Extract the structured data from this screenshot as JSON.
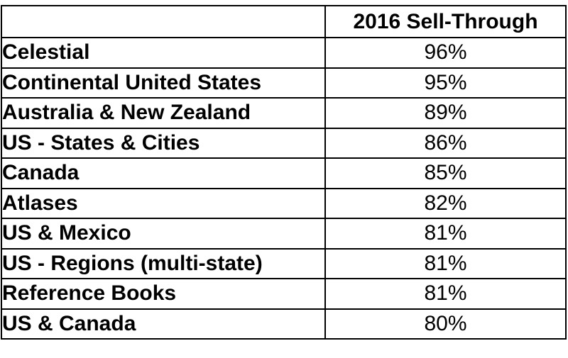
{
  "table": {
    "header": {
      "corner": "",
      "value_column": "2016 Sell-Through"
    },
    "rows": [
      {
        "label": "Celestial",
        "value": "96%"
      },
      {
        "label": "Continental United States",
        "value": "95%"
      },
      {
        "label": "Australia & New Zealand",
        "value": "89%"
      },
      {
        "label": "US - States & Cities",
        "value": "86%"
      },
      {
        "label": "Canada",
        "value": "85%"
      },
      {
        "label": "Atlases",
        "value": "82%"
      },
      {
        "label": "US & Mexico",
        "value": "81%"
      },
      {
        "label": "US - Regions (multi-state)",
        "value": "81%"
      },
      {
        "label": "Reference Books",
        "value": "81%"
      },
      {
        "label": "US & Canada",
        "value": "80%"
      }
    ]
  }
}
